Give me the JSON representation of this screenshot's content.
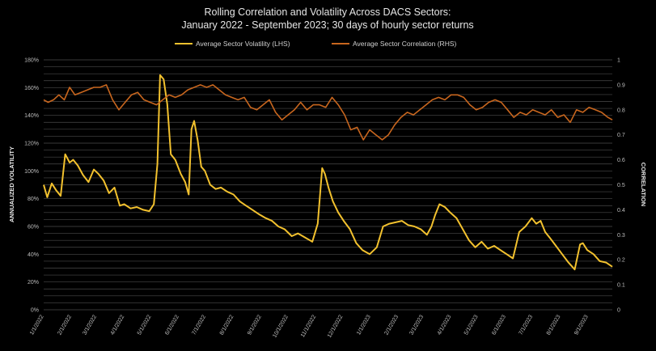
{
  "chart_data": {
    "type": "line",
    "title": "Rolling Correlation and Volatility Across DACS Sectors:",
    "subtitle": "January 2022 - September 2023; 30 days of hourly sector returns",
    "ylabel": "ANNUALIZED VOLATILITY",
    "y2label": "CORRELATION",
    "ylim": [
      0,
      1.8
    ],
    "y2lim": [
      0,
      1
    ],
    "yticks": [
      "0%",
      "20%",
      "40%",
      "60%",
      "80%",
      "100%",
      "120%",
      "140%",
      "160%",
      "180%"
    ],
    "y2ticks": [
      "0",
      "0.1",
      "0.2",
      "0.3",
      "0.4",
      "0.5",
      "0.6",
      "0.7",
      "0.8",
      "0.9",
      "1"
    ],
    "categories": [
      "1/1/2022",
      "2/1/2022",
      "3/1/2022",
      "4/1/2022",
      "5/1/2022",
      "6/1/2022",
      "7/1/2022",
      "8/1/2022",
      "9/1/2022",
      "10/1/2022",
      "11/1/2022",
      "12/1/2022",
      "1/1/2023",
      "2/1/2023",
      "3/1/2023",
      "4/1/2023",
      "5/1/2023",
      "6/1/2023",
      "7/1/2023",
      "8/1/2023",
      "9/1/2023"
    ],
    "grid": true,
    "legend_position": "top",
    "colors": {
      "volatility": "#f2c12e",
      "correlation": "#c8661e",
      "grid": "#4a4a4a"
    },
    "series": [
      {
        "name": "Average Sector Volatility (LHS)",
        "axis": "left",
        "x": [
          "2022-01-01",
          "2022-01-05",
          "2022-01-10",
          "2022-01-15",
          "2022-01-20",
          "2022-01-25",
          "2022-01-30",
          "2022-02-03",
          "2022-02-08",
          "2022-02-14",
          "2022-02-20",
          "2022-02-26",
          "2022-03-03",
          "2022-03-09",
          "2022-03-15",
          "2022-03-21",
          "2022-03-27",
          "2022-04-01",
          "2022-04-08",
          "2022-04-15",
          "2022-04-22",
          "2022-04-29",
          "2022-05-04",
          "2022-05-08",
          "2022-05-11",
          "2022-05-15",
          "2022-05-19",
          "2022-05-23",
          "2022-05-28",
          "2022-06-03",
          "2022-06-08",
          "2022-06-12",
          "2022-06-15",
          "2022-06-18",
          "2022-06-22",
          "2022-06-26",
          "2022-06-30",
          "2022-07-06",
          "2022-07-12",
          "2022-07-18",
          "2022-07-25",
          "2022-08-01",
          "2022-08-08",
          "2022-08-15",
          "2022-08-22",
          "2022-08-29",
          "2022-09-06",
          "2022-09-13",
          "2022-09-20",
          "2022-09-27",
          "2022-10-05",
          "2022-10-12",
          "2022-10-20",
          "2022-10-28",
          "2022-11-03",
          "2022-11-08",
          "2022-11-11",
          "2022-11-15",
          "2022-11-20",
          "2022-11-26",
          "2022-12-02",
          "2022-12-09",
          "2022-12-16",
          "2022-12-23",
          "2022-12-31",
          "2023-01-08",
          "2023-01-15",
          "2023-01-22",
          "2023-01-29",
          "2023-02-05",
          "2023-02-12",
          "2023-02-19",
          "2023-02-26",
          "2023-03-05",
          "2023-03-10",
          "2023-03-14",
          "2023-03-19",
          "2023-03-25",
          "2023-03-31",
          "2023-04-07",
          "2023-04-14",
          "2023-04-21",
          "2023-04-28",
          "2023-05-05",
          "2023-05-12",
          "2023-05-19",
          "2023-05-26",
          "2023-06-02",
          "2023-06-09",
          "2023-06-16",
          "2023-06-23",
          "2023-06-30",
          "2023-07-05",
          "2023-07-10",
          "2023-07-15",
          "2023-07-20",
          "2023-07-27",
          "2023-08-03",
          "2023-08-10",
          "2023-08-17",
          "2023-08-23",
          "2023-08-26",
          "2023-08-31",
          "2023-09-07",
          "2023-09-14",
          "2023-09-21",
          "2023-09-28"
        ],
        "values": [
          0.9,
          0.81,
          0.91,
          0.86,
          0.82,
          1.12,
          1.06,
          1.08,
          1.04,
          0.97,
          0.92,
          1.01,
          0.98,
          0.93,
          0.84,
          0.88,
          0.75,
          0.76,
          0.73,
          0.74,
          0.72,
          0.71,
          0.76,
          1.05,
          1.69,
          1.66,
          1.48,
          1.12,
          1.08,
          0.98,
          0.92,
          0.83,
          1.3,
          1.36,
          1.22,
          1.03,
          1.0,
          0.9,
          0.87,
          0.88,
          0.85,
          0.83,
          0.78,
          0.75,
          0.72,
          0.69,
          0.66,
          0.64,
          0.6,
          0.58,
          0.53,
          0.55,
          0.52,
          0.49,
          0.62,
          1.02,
          0.98,
          0.88,
          0.78,
          0.7,
          0.64,
          0.58,
          0.48,
          0.43,
          0.4,
          0.45,
          0.6,
          0.62,
          0.63,
          0.64,
          0.61,
          0.6,
          0.58,
          0.54,
          0.6,
          0.68,
          0.76,
          0.74,
          0.7,
          0.66,
          0.58,
          0.5,
          0.45,
          0.49,
          0.44,
          0.46,
          0.43,
          0.4,
          0.37,
          0.56,
          0.6,
          0.66,
          0.62,
          0.64,
          0.56,
          0.52,
          0.46,
          0.4,
          0.34,
          0.29,
          0.47,
          0.48,
          0.43,
          0.4,
          0.35,
          0.34,
          0.31
        ]
      },
      {
        "name": "Average Sector Correlation (RHS)",
        "axis": "right",
        "x": [
          "2022-01-01",
          "2022-01-06",
          "2022-01-12",
          "2022-01-18",
          "2022-01-24",
          "2022-01-30",
          "2022-02-05",
          "2022-02-12",
          "2022-02-19",
          "2022-02-26",
          "2022-03-05",
          "2022-03-12",
          "2022-03-19",
          "2022-03-26",
          "2022-04-02",
          "2022-04-09",
          "2022-04-16",
          "2022-04-23",
          "2022-04-30",
          "2022-05-07",
          "2022-05-14",
          "2022-05-21",
          "2022-05-28",
          "2022-06-04",
          "2022-06-11",
          "2022-06-18",
          "2022-06-25",
          "2022-07-02",
          "2022-07-09",
          "2022-07-16",
          "2022-07-23",
          "2022-07-30",
          "2022-08-06",
          "2022-08-13",
          "2022-08-20",
          "2022-08-27",
          "2022-09-03",
          "2022-09-10",
          "2022-09-17",
          "2022-09-24",
          "2022-10-01",
          "2022-10-08",
          "2022-10-15",
          "2022-10-22",
          "2022-10-29",
          "2022-11-05",
          "2022-11-12",
          "2022-11-19",
          "2022-11-26",
          "2022-12-03",
          "2022-12-10",
          "2022-12-17",
          "2022-12-24",
          "2022-12-31",
          "2023-01-07",
          "2023-01-14",
          "2023-01-21",
          "2023-01-28",
          "2023-02-04",
          "2023-02-11",
          "2023-02-18",
          "2023-02-25",
          "2023-03-04",
          "2023-03-11",
          "2023-03-18",
          "2023-03-25",
          "2023-04-01",
          "2023-04-08",
          "2023-04-15",
          "2023-04-22",
          "2023-04-29",
          "2023-05-06",
          "2023-05-13",
          "2023-05-20",
          "2023-05-27",
          "2023-06-03",
          "2023-06-10",
          "2023-06-17",
          "2023-06-24",
          "2023-07-01",
          "2023-07-08",
          "2023-07-15",
          "2023-07-22",
          "2023-07-29",
          "2023-08-05",
          "2023-08-12",
          "2023-08-19",
          "2023-08-26",
          "2023-09-02",
          "2023-09-09",
          "2023-09-16",
          "2023-09-23",
          "2023-09-28"
        ],
        "values": [
          0.84,
          0.83,
          0.84,
          0.86,
          0.84,
          0.89,
          0.86,
          0.87,
          0.88,
          0.89,
          0.89,
          0.9,
          0.84,
          0.8,
          0.83,
          0.86,
          0.87,
          0.84,
          0.83,
          0.82,
          0.84,
          0.86,
          0.85,
          0.86,
          0.88,
          0.89,
          0.9,
          0.89,
          0.9,
          0.88,
          0.86,
          0.85,
          0.84,
          0.85,
          0.81,
          0.8,
          0.82,
          0.84,
          0.79,
          0.76,
          0.78,
          0.8,
          0.83,
          0.8,
          0.82,
          0.82,
          0.81,
          0.85,
          0.82,
          0.78,
          0.72,
          0.73,
          0.68,
          0.72,
          0.7,
          0.68,
          0.7,
          0.74,
          0.77,
          0.79,
          0.78,
          0.8,
          0.82,
          0.84,
          0.85,
          0.84,
          0.86,
          0.86,
          0.85,
          0.82,
          0.8,
          0.81,
          0.83,
          0.84,
          0.83,
          0.8,
          0.77,
          0.79,
          0.78,
          0.8,
          0.79,
          0.78,
          0.8,
          0.77,
          0.78,
          0.75,
          0.8,
          0.79,
          0.81,
          0.8,
          0.79,
          0.77,
          0.76
        ]
      }
    ]
  }
}
